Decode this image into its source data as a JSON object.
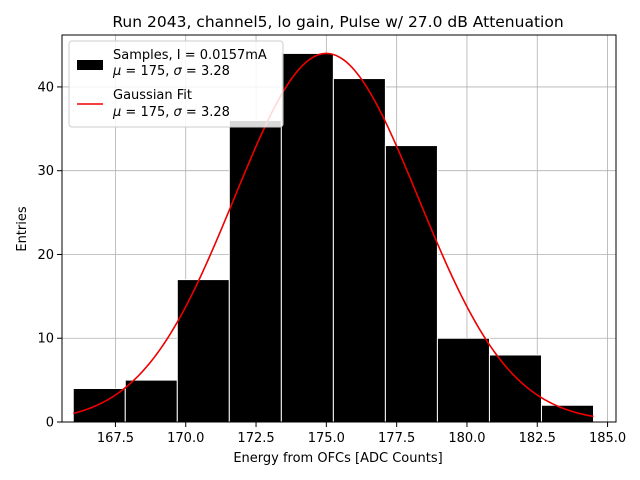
{
  "chart_data": {
    "type": "bar",
    "title": "Run 2043, channel5, lo gain, Pulse w/ 27.0 dB Attenuation",
    "xlabel": "Energy from OFCs [ADC Counts]",
    "ylabel": "Entries",
    "xlim": [
      165.6,
      185.3
    ],
    "ylim": [
      0,
      46.2
    ],
    "xticks": [
      167.5,
      170.0,
      172.5,
      175.0,
      177.5,
      180.0,
      182.5,
      185.0
    ],
    "xtick_labels": [
      "167.5",
      "170.0",
      "172.5",
      "175.0",
      "177.5",
      "180.0",
      "182.5",
      "185.0"
    ],
    "yticks": [
      0,
      10,
      20,
      30,
      40
    ],
    "ytick_labels": [
      "0",
      "10",
      "20",
      "30",
      "40"
    ],
    "grid": true,
    "legend_position": "top-left",
    "histogram": {
      "name": "Samples, I = 0.0157mA",
      "stats_label": "μ = 175, σ = 3.28",
      "color": "#000000",
      "bin_edges": [
        166.0,
        167.85,
        169.7,
        171.55,
        173.4,
        175.25,
        177.1,
        178.95,
        180.8,
        182.65,
        184.5
      ],
      "counts": [
        4,
        5,
        17,
        36,
        44,
        41,
        33,
        10,
        8,
        2
      ]
    },
    "fit": {
      "name": "Gaussian Fit",
      "stats_label": "μ = 175, σ = 3.28",
      "color": "#ee0000",
      "mu": 175.0,
      "sigma": 3.28,
      "amplitude": 44.0,
      "x_range": [
        166.0,
        184.5
      ]
    }
  }
}
